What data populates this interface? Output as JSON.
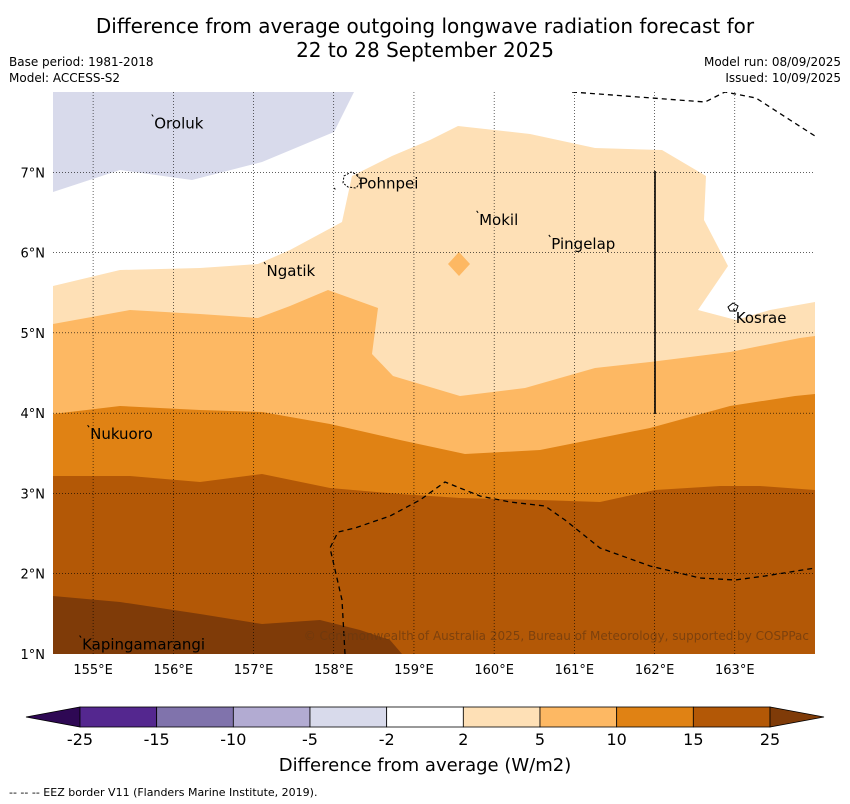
{
  "header": {
    "title_line1": "Difference from average outgoing longwave radiation forecast for",
    "title_line2": "22 to 28 September 2025",
    "base_period": "Base period: 1981-2018",
    "model": "Model: ACCESS-S2",
    "model_run": "Model run: 08/09/2025",
    "issued": "Issued: 10/09/2025"
  },
  "map": {
    "lon_range": [
      154.5,
      164.0
    ],
    "lat_range": [
      1.0,
      8.0
    ],
    "lon_ticks": [
      "155°E",
      "156°E",
      "157°E",
      "158°E",
      "159°E",
      "160°E",
      "161°E",
      "162°E",
      "163°E"
    ],
    "lat_ticks": [
      "1°N",
      "2°N",
      "3°N",
      "4°N",
      "5°N",
      "6°N",
      "7°N"
    ],
    "places": [
      {
        "name": "Oroluk",
        "lon": 155.75,
        "lat": 7.62
      },
      {
        "name": "Pohnpei",
        "lon": 158.3,
        "lat": 6.87
      },
      {
        "name": "Mokil",
        "lon": 159.8,
        "lat": 6.42
      },
      {
        "name": "Pingelap",
        "lon": 160.7,
        "lat": 6.12
      },
      {
        "name": "Ngatik",
        "lon": 157.15,
        "lat": 5.78
      },
      {
        "name": "Kosrae",
        "lon": 163.0,
        "lat": 5.2
      },
      {
        "name": "Nukuoro",
        "lon": 154.95,
        "lat": 3.75
      },
      {
        "name": "Kapingamarangi",
        "lon": 154.85,
        "lat": 1.13
      }
    ],
    "copyright": "© Commonwealth of Australia 2025, Bureau of Meteorology, supported by COSPPac"
  },
  "colorbar": {
    "labels": [
      "-25",
      "-15",
      "-10",
      "-5",
      "-2",
      "2",
      "5",
      "10",
      "15",
      "25"
    ],
    "colors": [
      "#2e0854",
      "#54278f",
      "#8073ac",
      "#b2abd2",
      "#d8daeb",
      "#ffffff",
      "#fee0b6",
      "#fdb863",
      "#e08214",
      "#b35806",
      "#7f3b08"
    ],
    "title": "Difference from average (W/m2)"
  },
  "footnote": "--  --  -- EEZ border V11 (Flanders Marine Institute, 2019)."
}
